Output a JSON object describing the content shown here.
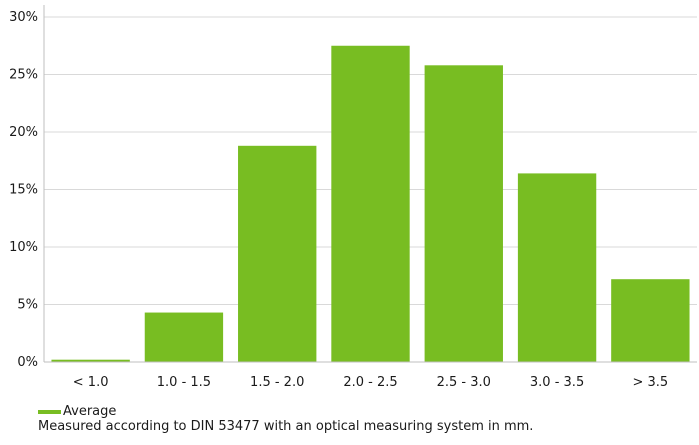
{
  "chart_data": {
    "type": "bar",
    "categories": [
      "< 1.0",
      "1.0 - 1.5",
      "1.5 - 2.0",
      "2.0 - 2.5",
      "2.5 - 3.0",
      "3.0 - 3.5",
      "> 3.5"
    ],
    "series": [
      {
        "name": "Average",
        "values": [
          0.2,
          4.3,
          18.8,
          27.5,
          25.8,
          16.4,
          7.2
        ]
      }
    ],
    "y_ticks": [
      "0%",
      "5%",
      "10%",
      "15%",
      "20%",
      "25%",
      "30%"
    ],
    "ylim": [
      0,
      30
    ],
    "y_unit": "%",
    "grid": "horizontal",
    "legend_position": "bottom-left",
    "bar_color": "#78bd22",
    "footnote": "Measured according to DIN 53477 with an optical measuring system in mm."
  }
}
